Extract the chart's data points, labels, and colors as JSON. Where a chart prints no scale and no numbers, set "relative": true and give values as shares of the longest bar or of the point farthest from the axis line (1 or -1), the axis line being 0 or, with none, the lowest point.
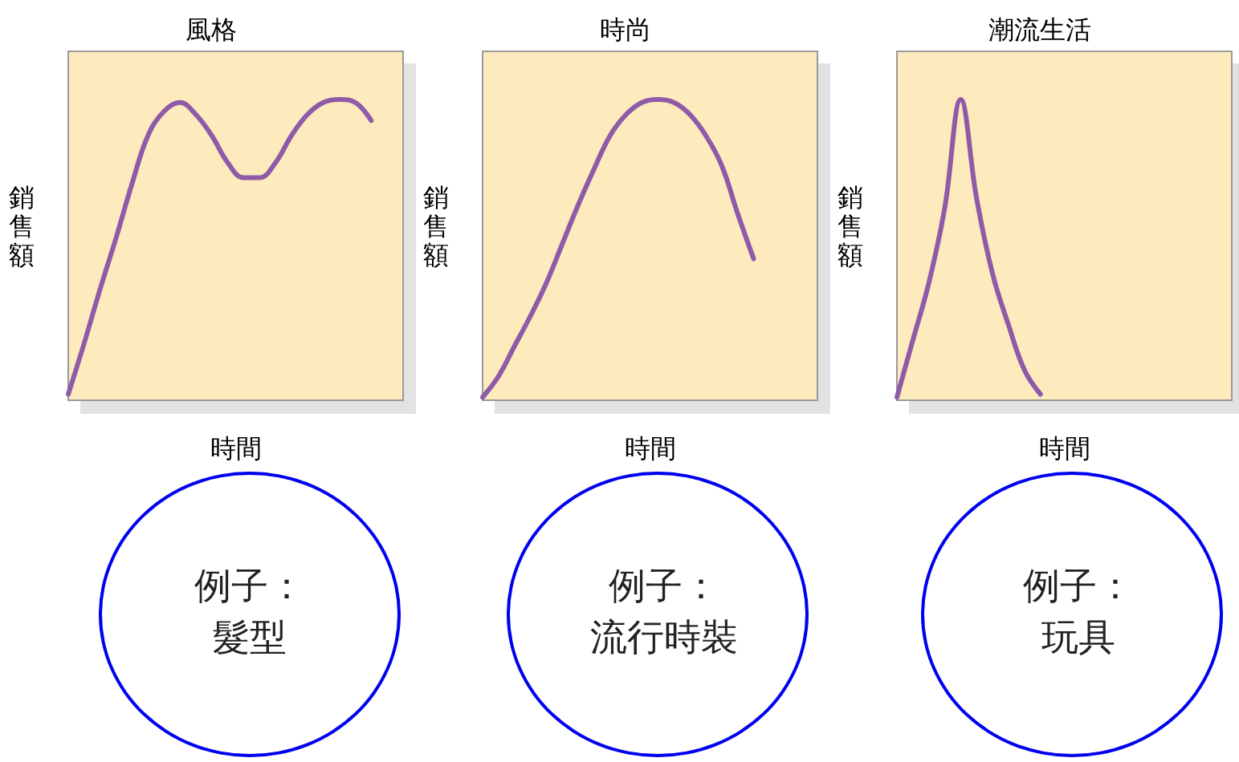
{
  "chart_data": [
    {
      "type": "line",
      "title": "風格",
      "xlabel": "時間",
      "ylabel": "銷售額",
      "relative": true,
      "color": "#8f5aa8",
      "categories": [
        null,
        null,
        null,
        null,
        null,
        null,
        null,
        null,
        null,
        null,
        null,
        null,
        null,
        null,
        null,
        null,
        null,
        null,
        null,
        null,
        null,
        null
      ],
      "values": [
        0.02,
        0.19,
        0.37,
        0.54,
        0.72,
        0.88,
        0.96,
        0.99,
        0.95,
        0.88,
        0.79,
        0.74,
        0.74,
        0.79,
        0.88,
        0.95,
        0.99,
        1.0,
        0.99,
        0.93,
        null,
        null
      ],
      "annotations": [
        "例子：",
        "髮型"
      ]
    },
    {
      "type": "line",
      "title": "時尚",
      "xlabel": "時間",
      "ylabel": "銷售額",
      "relative": true,
      "color": "#8f5aa8",
      "categories": [
        null,
        null,
        null,
        null,
        null,
        null,
        null,
        null,
        null,
        null,
        null,
        null,
        null,
        null,
        null,
        null,
        null,
        null,
        null,
        null,
        null,
        null
      ],
      "values": [
        0.01,
        0.08,
        0.18,
        0.28,
        0.39,
        0.52,
        0.65,
        0.77,
        0.88,
        0.95,
        0.99,
        1.0,
        0.99,
        0.95,
        0.88,
        0.78,
        0.62,
        0.47,
        null,
        null,
        null,
        null
      ],
      "annotations": [
        "例子：",
        "流行時裝"
      ]
    },
    {
      "type": "line",
      "title": "潮流生活",
      "xlabel": "時間",
      "ylabel": "銷售額",
      "relative": true,
      "color": "#8f5aa8",
      "categories": [
        null,
        null,
        null,
        null,
        null,
        null,
        null,
        null,
        null,
        null,
        null,
        null,
        null,
        null,
        null,
        null,
        null,
        null,
        null,
        null,
        null,
        null
      ],
      "values": [
        0.01,
        0.2,
        0.39,
        0.64,
        1.0,
        0.67,
        0.42,
        0.25,
        0.1,
        0.02,
        null,
        null,
        null,
        null,
        null,
        null,
        null,
        null,
        null,
        null,
        null,
        null
      ],
      "annotations": [
        "例子：",
        "玩具"
      ]
    }
  ]
}
